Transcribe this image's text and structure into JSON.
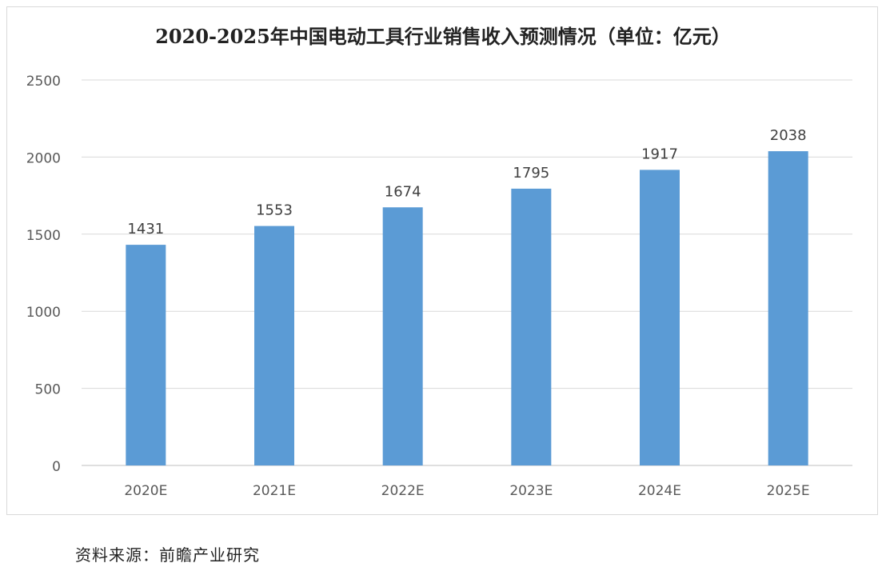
{
  "chart_data": {
    "type": "bar",
    "title": "2020-2025年中国电动工具行业销售收入预测情况（单位：亿元）",
    "categories": [
      "2020E",
      "2021E",
      "2022E",
      "2023E",
      "2024E",
      "2025E"
    ],
    "values": [
      1431,
      1553,
      1674,
      1795,
      1917,
      2038
    ],
    "data_labels": [
      "1431",
      "1553",
      "1674",
      "1795",
      "1917",
      "2038"
    ],
    "yticks": [
      "0",
      "500",
      "1000",
      "1500",
      "2000",
      "2500"
    ],
    "ylim": [
      0,
      2500
    ],
    "grid": true,
    "legend": "none",
    "bar_color": "#5b9bd5"
  },
  "source_note": "资料来源：前瞻产业研究"
}
